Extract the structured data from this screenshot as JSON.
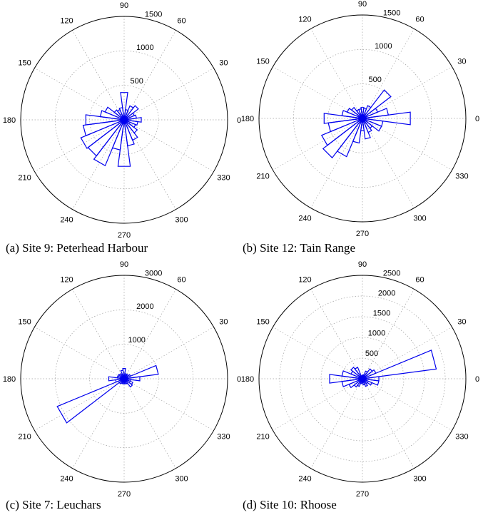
{
  "angle_labels": [
    "0",
    "30",
    "60",
    "90",
    "120",
    "150",
    "180",
    "210",
    "240",
    "270",
    "300",
    "330"
  ],
  "colors": {
    "series": "#0000ee",
    "grid": "#a0a0a0",
    "axis": "#000000"
  },
  "chart_data": [
    {
      "type": "polar-histogram",
      "caption": "(a) Site 9: Peterhead Harbour",
      "rmax": 1500,
      "radial_ticks": [
        500,
        1000,
        1500
      ],
      "radial_tick_labels": [
        "500",
        "1000",
        "1500"
      ],
      "bin_width_deg": 15,
      "bin_centers_deg": [
        0,
        15,
        30,
        45,
        60,
        75,
        90,
        105,
        120,
        135,
        150,
        165,
        180,
        195,
        210,
        225,
        240,
        255,
        270,
        285,
        300,
        315,
        330,
        345
      ],
      "values": [
        250,
        180,
        160,
        260,
        220,
        150,
        400,
        180,
        160,
        180,
        300,
        350,
        560,
        600,
        680,
        660,
        720,
        440,
        680,
        380,
        320,
        240,
        180,
        200
      ]
    },
    {
      "type": "polar-histogram",
      "caption": "(b) Site 12: Tain Range",
      "rmax": 1500,
      "radial_ticks": [
        500,
        1000,
        1500
      ],
      "radial_tick_labels": [
        "500",
        "1000",
        "1500"
      ],
      "bin_width_deg": 15,
      "bin_centers_deg": [
        0,
        15,
        30,
        45,
        60,
        75,
        90,
        105,
        120,
        135,
        150,
        165,
        180,
        195,
        210,
        225,
        240,
        255,
        270,
        285,
        300,
        315,
        330,
        345
      ],
      "values": [
        700,
        380,
        240,
        520,
        200,
        150,
        160,
        140,
        140,
        200,
        240,
        300,
        560,
        500,
        640,
        720,
        600,
        360,
        180,
        300,
        220,
        180,
        300,
        300
      ]
    },
    {
      "type": "polar-histogram",
      "caption": "(c) Site 7: Leuchars",
      "rmax": 3000,
      "radial_ticks": [
        1000,
        2000,
        3000
      ],
      "radial_tick_labels": [
        "1000",
        "2000",
        "3000"
      ],
      "bin_width_deg": 15,
      "bin_centers_deg": [
        0,
        15,
        30,
        45,
        60,
        75,
        90,
        105,
        120,
        135,
        150,
        165,
        180,
        195,
        210,
        225,
        240,
        255,
        270,
        285,
        300,
        315,
        330,
        345
      ],
      "values": [
        460,
        1000,
        200,
        150,
        150,
        150,
        300,
        250,
        150,
        180,
        200,
        200,
        450,
        250,
        2100,
        180,
        150,
        150,
        140,
        150,
        160,
        300,
        270,
        200
      ]
    },
    {
      "type": "polar-histogram",
      "caption": "(d) Site 10: Rhoose",
      "rmax": 2500,
      "radial_ticks": [
        500,
        1000,
        1500,
        2000,
        2500
      ],
      "radial_tick_labels": [
        "500",
        "1000",
        "1500",
        "2000",
        "2500"
      ],
      "bin_width_deg": 15,
      "bin_centers_deg": [
        0,
        15,
        30,
        45,
        60,
        75,
        90,
        105,
        120,
        135,
        150,
        165,
        180,
        195,
        210,
        225,
        240,
        255,
        270,
        285,
        300,
        315,
        330,
        345
      ],
      "values": [
        400,
        1800,
        350,
        300,
        200,
        100,
        80,
        70,
        300,
        350,
        300,
        500,
        800,
        500,
        350,
        250,
        200,
        120,
        100,
        150,
        200,
        150,
        250,
        400
      ]
    }
  ]
}
